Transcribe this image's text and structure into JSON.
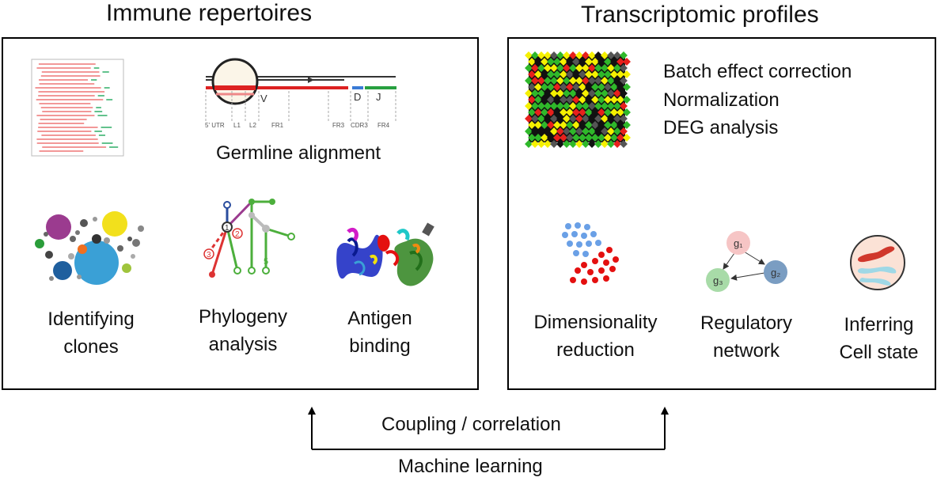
{
  "titles": {
    "left": "Immune repertoires",
    "right": "Transcriptomic profiles"
  },
  "left_panel": {
    "germline_label": "Germline alignment",
    "germline_segments": {
      "v": "V",
      "d": "D",
      "j": "J",
      "regions": [
        "5' UTR",
        "L1",
        "L2",
        "FR1",
        "FR3",
        "CDR3",
        "FR4"
      ]
    },
    "clones_label_line1": "Identifying",
    "clones_label_line2": "clones",
    "phylogeny_label_line1": "Phylogeny",
    "phylogeny_label_line2": "analysis",
    "phylogeny_node_labels": [
      "1",
      "2",
      "3",
      "5"
    ],
    "antigen_label_line1": "Antigen",
    "antigen_label_line2": "binding",
    "colors": {
      "clone_blue": "#3aa0d6",
      "clone_purple": "#9b3b8f",
      "clone_yellow": "#f2e01c"
    }
  },
  "right_panel": {
    "analysis_items": [
      "Batch effect correction",
      "Normalization",
      "DEG analysis"
    ],
    "dimred_label_line1": "Dimensionality",
    "dimred_label_line2": "reduction",
    "network_label_line1": "Regulatory",
    "network_label_line2": "network",
    "network_nodes": [
      "g₁",
      "g₂",
      "g₃"
    ],
    "cellstate_label_line1": "Inferring",
    "cellstate_label_line2": "Cell state",
    "colors": {
      "heat_red": "#e8201c",
      "heat_green": "#2fb82a",
      "heat_yellow": "#f5f000",
      "dot_blue": "#6aa0e6",
      "dot_red": "#e41010"
    }
  },
  "flow": {
    "coupling_label": "Coupling / correlation",
    "ml_label": "Machine learning"
  }
}
